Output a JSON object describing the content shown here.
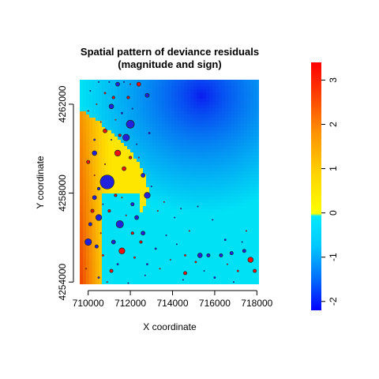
{
  "chart_data": {
    "type": "scatter",
    "title": "Spatial pattern of deviance residuals",
    "subtitle": "(magnitude and sign)",
    "xlabel": "X coordinate",
    "ylabel": "Y coordinate",
    "xlim": [
      709600,
      718100
    ],
    "ylim": [
      4253900,
      4263100
    ],
    "x_ticks": [
      710000,
      712000,
      714000,
      716000,
      718000
    ],
    "x_tick_labels": [
      "710000",
      "712000",
      "714000",
      "716000",
      "718000"
    ],
    "y_ticks": [
      4254000,
      4258000,
      4262000
    ],
    "y_tick_labels": [
      "4254000",
      "4258000",
      "4262000"
    ],
    "colorbar": {
      "range": [
        -2.2,
        3.4
      ],
      "ticks": [
        -2,
        -1,
        0,
        1,
        2,
        3
      ],
      "tick_labels": [
        "-2",
        "-1",
        "0",
        "1",
        "2",
        "3"
      ]
    },
    "point_legend": "marker size proportional to |residual|; red = positive, blue = negative",
    "points": [
      {
        "x": 710900,
        "y": 4258500,
        "r": -2.1
      },
      {
        "x": 712000,
        "y": 4261100,
        "r": -1.2
      },
      {
        "x": 711500,
        "y": 4256600,
        "r": -1.1
      },
      {
        "x": 711800,
        "y": 4260500,
        "r": -1.0
      },
      {
        "x": 710000,
        "y": 4255800,
        "r": -1.0
      },
      {
        "x": 710500,
        "y": 4256900,
        "r": -0.9
      },
      {
        "x": 711400,
        "y": 4259800,
        "r": 0.9
      },
      {
        "x": 712800,
        "y": 4257900,
        "r": -0.9
      },
      {
        "x": 711600,
        "y": 4255400,
        "r": 0.9
      },
      {
        "x": 717700,
        "y": 4255000,
        "r": 0.8
      },
      {
        "x": 715300,
        "y": 4255200,
        "r": -0.7
      },
      {
        "x": 710300,
        "y": 4259800,
        "r": -0.7
      },
      {
        "x": 711100,
        "y": 4261900,
        "r": -0.7
      },
      {
        "x": 712300,
        "y": 4256900,
        "r": -0.6
      },
      {
        "x": 711400,
        "y": 4262900,
        "r": -0.6
      },
      {
        "x": 712800,
        "y": 4262400,
        "r": -0.6
      },
      {
        "x": 712600,
        "y": 4256200,
        "r": -0.6
      },
      {
        "x": 711200,
        "y": 4255800,
        "r": -0.6
      },
      {
        "x": 710300,
        "y": 4257800,
        "r": -0.6
      },
      {
        "x": 712600,
        "y": 4258800,
        "r": -0.6
      },
      {
        "x": 712400,
        "y": 4262900,
        "r": 0.6
      },
      {
        "x": 711700,
        "y": 4259100,
        "r": 0.6
      },
      {
        "x": 710800,
        "y": 4260800,
        "r": 0.6
      },
      {
        "x": 710000,
        "y": 4259400,
        "r": 0.5
      },
      {
        "x": 710200,
        "y": 4257200,
        "r": 0.5
      },
      {
        "x": 710400,
        "y": 4255600,
        "r": -0.5
      },
      {
        "x": 711100,
        "y": 4254500,
        "r": 0.5
      },
      {
        "x": 714600,
        "y": 4254400,
        "r": 0.5
      },
      {
        "x": 715700,
        "y": 4255200,
        "r": -0.5
      },
      {
        "x": 716300,
        "y": 4255200,
        "r": -0.5
      },
      {
        "x": 717400,
        "y": 4255400,
        "r": -0.5
      },
      {
        "x": 717900,
        "y": 4254500,
        "r": 0.5
      },
      {
        "x": 716800,
        "y": 4255300,
        "r": -0.5
      },
      {
        "x": 712100,
        "y": 4257500,
        "r": -0.5
      },
      {
        "x": 710100,
        "y": 4256600,
        "r": -0.5
      },
      {
        "x": 712500,
        "y": 4255800,
        "r": 0.4
      },
      {
        "x": 712100,
        "y": 4256200,
        "r": 0.4
      },
      {
        "x": 711200,
        "y": 4262300,
        "r": 0.4
      },
      {
        "x": 712000,
        "y": 4259600,
        "r": 0.4
      },
      {
        "x": 711900,
        "y": 4262300,
        "r": 0.4
      },
      {
        "x": 711300,
        "y": 4257900,
        "r": 0.4
      },
      {
        "x": 711000,
        "y": 4257200,
        "r": 0.4
      },
      {
        "x": 711500,
        "y": 4260600,
        "r": 0.4
      },
      {
        "x": 710500,
        "y": 4258200,
        "r": -0.4
      },
      {
        "x": 715100,
        "y": 4254900,
        "r": 0.3
      },
      {
        "x": 714600,
        "y": 4255200,
        "r": 0.3
      },
      {
        "x": 710300,
        "y": 4260400,
        "r": -0.3
      },
      {
        "x": 711600,
        "y": 4261600,
        "r": -0.3
      },
      {
        "x": 710800,
        "y": 4262500,
        "r": 0.3
      },
      {
        "x": 712900,
        "y": 4260700,
        "r": -0.3
      },
      {
        "x": 711400,
        "y": 4254800,
        "r": -0.3
      },
      {
        "x": 712200,
        "y": 4255100,
        "r": 0.3
      },
      {
        "x": 710700,
        "y": 4255200,
        "r": 0.3
      },
      {
        "x": 710500,
        "y": 4254200,
        "r": -0.3
      },
      {
        "x": 713200,
        "y": 4255500,
        "r": -0.3
      },
      {
        "x": 712800,
        "y": 4254800,
        "r": -0.3
      },
      {
        "x": 716000,
        "y": 4254200,
        "r": -0.3
      },
      {
        "x": 717100,
        "y": 4254500,
        "r": 0.3
      },
      {
        "x": 716500,
        "y": 4255900,
        "r": -0.3
      },
      {
        "x": 714200,
        "y": 4255700,
        "r": -0.2
      },
      {
        "x": 713700,
        "y": 4256100,
        "r": -0.2
      },
      {
        "x": 713300,
        "y": 4257200,
        "r": 0.2
      },
      {
        "x": 714100,
        "y": 4256900,
        "r": -0.2
      },
      {
        "x": 714800,
        "y": 4256300,
        "r": 0.2
      },
      {
        "x": 715200,
        "y": 4257400,
        "r": -0.2
      },
      {
        "x": 714500,
        "y": 4254100,
        "r": -0.2
      },
      {
        "x": 715900,
        "y": 4256800,
        "r": -0.2
      },
      {
        "x": 716900,
        "y": 4254000,
        "r": -0.2
      },
      {
        "x": 717500,
        "y": 4256300,
        "r": 0.2
      },
      {
        "x": 713000,
        "y": 4258300,
        "r": -0.2
      },
      {
        "x": 712400,
        "y": 4259600,
        "r": 0.2
      },
      {
        "x": 712100,
        "y": 4261800,
        "r": -0.2
      },
      {
        "x": 710000,
        "y": 4261700,
        "r": 0.2
      },
      {
        "x": 710600,
        "y": 4261200,
        "r": -0.2
      },
      {
        "x": 710100,
        "y": 4262600,
        "r": -0.2
      },
      {
        "x": 710800,
        "y": 4259300,
        "r": 0.2
      },
      {
        "x": 711100,
        "y": 4260400,
        "r": -0.2
      },
      {
        "x": 710600,
        "y": 4256200,
        "r": 0.2
      },
      {
        "x": 709900,
        "y": 4254600,
        "r": 0.2
      },
      {
        "x": 712700,
        "y": 4254300,
        "r": -0.2
      },
      {
        "x": 713400,
        "y": 4254600,
        "r": 0.2
      },
      {
        "x": 711900,
        "y": 4253950,
        "r": -0.2
      },
      {
        "x": 711000,
        "y": 4263000,
        "r": -0.2
      },
      {
        "x": 712000,
        "y": 4262900,
        "r": 0.2
      },
      {
        "x": 710500,
        "y": 4263000,
        "r": -0.2
      },
      {
        "x": 711800,
        "y": 4257000,
        "r": 0.2
      },
      {
        "x": 711600,
        "y": 4257800,
        "r": 0.15
      },
      {
        "x": 710700,
        "y": 4257500,
        "r": -0.15
      },
      {
        "x": 710300,
        "y": 4258800,
        "r": 0.15
      },
      {
        "x": 711300,
        "y": 4261300,
        "r": 0.15
      },
      {
        "x": 712300,
        "y": 4260200,
        "r": -0.15
      },
      {
        "x": 710900,
        "y": 4254000,
        "r": 0.15
      },
      {
        "x": 713900,
        "y": 4255000,
        "r": 0.15
      },
      {
        "x": 715500,
        "y": 4254500,
        "r": -0.15
      },
      {
        "x": 716600,
        "y": 4254800,
        "r": 0.15
      },
      {
        "x": 717300,
        "y": 4255800,
        "r": -0.15
      },
      {
        "x": 713600,
        "y": 4257600,
        "r": 0.15
      },
      {
        "x": 714400,
        "y": 4257300,
        "r": -0.15
      },
      {
        "x": 710400,
        "y": 4262000,
        "r": 0.15
      },
      {
        "x": 711700,
        "y": 4263000,
        "r": -0.15
      }
    ]
  }
}
